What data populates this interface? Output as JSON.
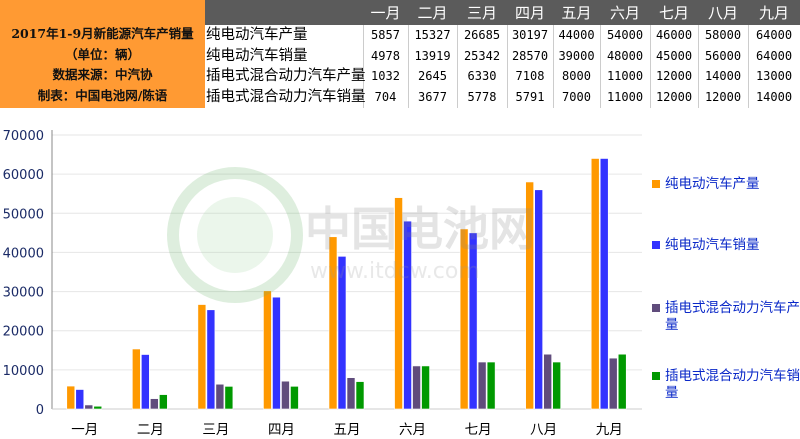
{
  "table": {
    "info_lines": [
      "2017年1-9月新能源汽车产销量",
      "（单位：辆）",
      "数据来源：中汽协",
      "制表：中国电池网/陈语"
    ],
    "months": [
      "一月",
      "二月",
      "三月",
      "四月",
      "五月",
      "六月",
      "七月",
      "八月",
      "九月"
    ],
    "rows": [
      {
        "label": "纯电动汽车产量",
        "values": [
          "5857",
          "15327",
          "26685",
          "30197",
          "44000",
          "54000",
          "46000",
          "58000",
          "64000"
        ]
      },
      {
        "label": "纯电动汽车销量",
        "values": [
          "4978",
          "13919",
          "25342",
          "28570",
          "39000",
          "48000",
          "45000",
          "56000",
          "64000"
        ]
      },
      {
        "label": "插电式混合动力汽车产量",
        "values": [
          "1032",
          "2645",
          "6330",
          "7108",
          "8000",
          "11000",
          "12000",
          "14000",
          "13000"
        ]
      },
      {
        "label": "插电式混合动力汽车销量",
        "values": [
          "704",
          "3677",
          "5778",
          "5791",
          "7000",
          "11000",
          "12000",
          "12000",
          "14000"
        ]
      }
    ]
  },
  "watermark": {
    "name": "中国电池网",
    "url": "www.itdcw.com"
  },
  "chart_data": {
    "type": "bar",
    "categories": [
      "一月",
      "二月",
      "三月",
      "四月",
      "五月",
      "六月",
      "七月",
      "八月",
      "九月"
    ],
    "series": [
      {
        "name": "纯电动汽车产量",
        "color": "#FF9900",
        "values": [
          5857,
          15327,
          26685,
          30197,
          44000,
          54000,
          46000,
          58000,
          64000
        ]
      },
      {
        "name": "纯电动汽车销量",
        "color": "#3333FF",
        "values": [
          4978,
          13919,
          25342,
          28570,
          39000,
          48000,
          45000,
          56000,
          64000
        ]
      },
      {
        "name": "插电式混合动力汽车产量",
        "color": "#604C7C",
        "values": [
          1032,
          2645,
          6330,
          7108,
          8000,
          11000,
          12000,
          14000,
          13000
        ]
      },
      {
        "name": "插电式混合动力汽车销量",
        "color": "#009900",
        "values": [
          704,
          3677,
          5778,
          5791,
          7000,
          11000,
          12000,
          12000,
          14000
        ]
      }
    ],
    "yticks": [
      "0",
      "10000",
      "20000",
      "30000",
      "40000",
      "50000",
      "60000",
      "70000"
    ],
    "ylim": [
      0,
      70000
    ],
    "grid": true,
    "legend": "right"
  }
}
